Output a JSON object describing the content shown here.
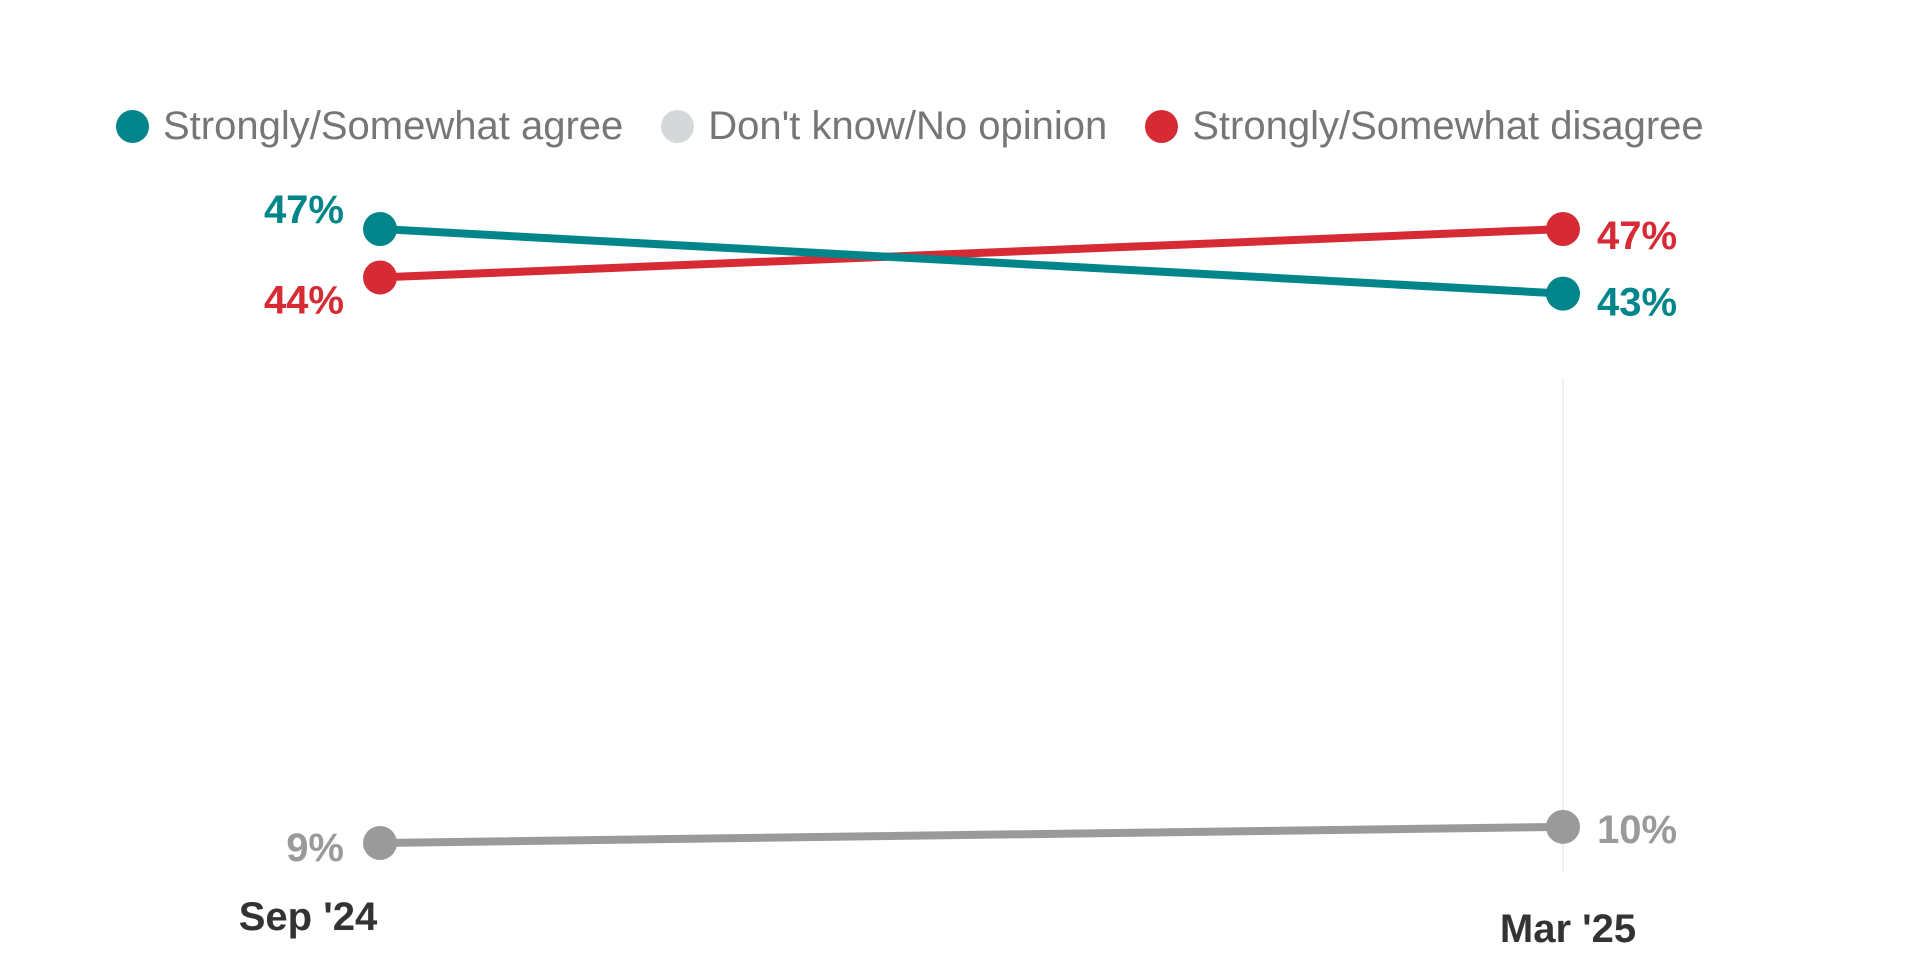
{
  "chart_data": {
    "type": "line",
    "categories": [
      "Sep '24",
      "Mar '25"
    ],
    "series": [
      {
        "name": "Strongly/Somewhat agree",
        "values": [
          47,
          43
        ],
        "labels": [
          "47%",
          "43%"
        ],
        "color": "#00868a"
      },
      {
        "name": "Don't know/No opinion",
        "values": [
          9,
          10
        ],
        "labels": [
          "9%",
          "10%"
        ],
        "color": "#9a9a9a",
        "legend_color": "#d5d8d8"
      },
      {
        "name": "Strongly/Somewhat disagree",
        "values": [
          44,
          47
        ],
        "labels": [
          "44%",
          "47%"
        ],
        "color": "#d62b34"
      }
    ],
    "ylim": [
      0,
      60
    ],
    "grid": false,
    "legend_position": "top-left"
  }
}
